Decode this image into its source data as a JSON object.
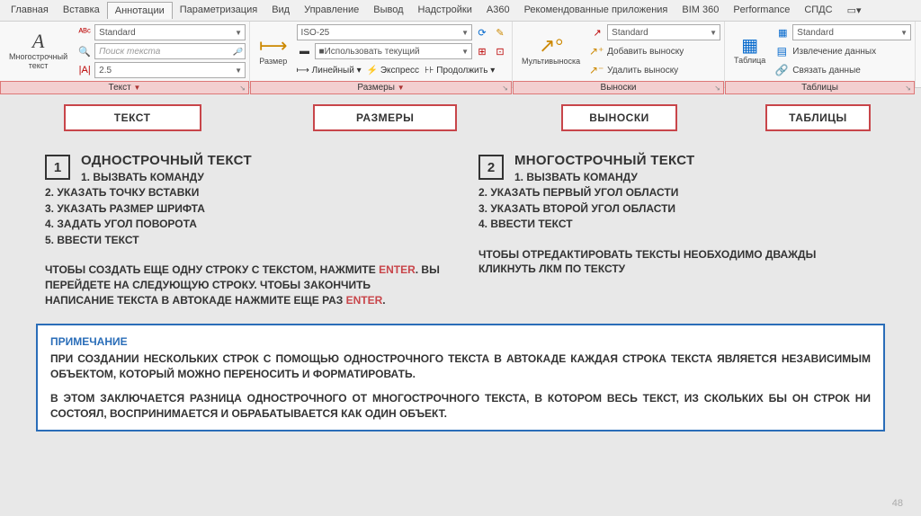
{
  "menu": [
    "Главная",
    "Вставка",
    "Аннотации",
    "Параметризация",
    "Вид",
    "Управление",
    "Вывод",
    "Надстройки",
    "A360",
    "Рекомендованные приложения",
    "BIM 360",
    "Performance",
    "СПДС",
    "▭▾"
  ],
  "menu_active_index": 2,
  "panels": {
    "text": {
      "tab": "Текст",
      "big_label": "Многострочный\nтекст",
      "combo1": "Standard",
      "search_ph": "Поиск текста",
      "combo2": "2.5"
    },
    "dim": {
      "tab": "Размеры",
      "big_label": "Размер",
      "combo1": "ISO-25",
      "use_current": "Использовать текущий",
      "btn1": "Линейный",
      "btn2": "Экспресс",
      "btn3": "Продолжить"
    },
    "leader": {
      "tab": "Выноски",
      "big_label": "Мультивыноска",
      "combo": "Standard",
      "add": "Добавить выноску",
      "del": "Удалить выноску"
    },
    "table": {
      "tab": "Таблицы",
      "big_label": "Таблица",
      "combo": "Standard",
      "extract": "Извлечение данных",
      "link": "Связать данные"
    }
  },
  "callouts": [
    "ТЕКСТ",
    "РАЗМЕРЫ",
    "ВЫНОСКИ",
    "ТАБЛИЦЫ"
  ],
  "col1": {
    "num": "1",
    "title": "ОДНОСТРОЧНЫЙ ТЕКСТ",
    "steps": [
      "1. ВЫЗВАТЬ КОМАНДУ",
      "2. УКАЗАТЬ ТОЧКУ ВСТАВКИ",
      "3. УКАЗАТЬ РАЗМЕР ШРИФТА",
      "4. ЗАДАТЬ УГОЛ ПОВОРОТА",
      "5. ВВЕСТИ ТЕКСТ"
    ],
    "note_a": "ЧТОБЫ СОЗДАТЬ ЕЩЕ ОДНУ СТРОКУ С ТЕКСТОМ, НАЖМИТЕ ",
    "enter": "ENTER",
    "note_b": ". ВЫ ПЕРЕЙДЕТЕ НА СЛЕДУЮЩУЮ СТРОКУ. ЧТОБЫ ЗАКОНЧИТЬ НАПИСАНИЕ ТЕКСТА В АВТОКАДЕ НАЖМИТЕ ЕЩЕ РАЗ ",
    "note_c": "."
  },
  "col2": {
    "num": "2",
    "title": "МНОГОСТРОЧНЫЙ ТЕКСТ",
    "steps": [
      "1. ВЫЗВАТЬ КОМАНДУ",
      "2. УКАЗАТЬ ПЕРВЫЙ УГОЛ ОБЛАСТИ",
      "3. УКАЗАТЬ ВТОРОЙ УГОЛ ОБЛАСТИ",
      "4. ВВЕСТИ ТЕКСТ"
    ],
    "note": "ЧТОБЫ ОТРЕДАКТИРОВАТЬ ТЕКСТЫ НЕОБХОДИМО ДВАЖДЫ КЛИКНУТЬ ЛКМ ПО ТЕКСТУ"
  },
  "footnote": {
    "hd": "ПРИМЕЧАНИЕ",
    "p1": "ПРИ СОЗДАНИИ НЕСКОЛЬКИХ СТРОК С ПОМОЩЬЮ ОДНОСТРОЧНОГО ТЕКСТА В АВТОКАДЕ КАЖДАЯ СТРОКА ТЕКСТА ЯВЛЯЕТСЯ НЕЗАВИСИМЫМ ОБЪЕКТОМ, КОТОРЫЙ МОЖНО ПЕРЕНОСИТЬ И ФОРМАТИРОВАТЬ.",
    "p2": "В ЭТОМ ЗАКЛЮЧАЕТСЯ РАЗНИЦА ОДНОСТРОЧНОГО ОТ МНОГОСТРОЧНОГО ТЕКСТА, В КОТОРОМ ВЕСЬ ТЕКСТ, ИЗ СКОЛЬКИХ БЫ ОН СТРОК НИ СОСТОЯЛ, ВОСПРИНИМАЕТСЯ И ОБРАБАТЫВАЕТСЯ КАК ОДИН ОБЪЕКТ."
  },
  "page": "48",
  "panel_widths": {
    "text": 278,
    "dim": 292,
    "leader": 236,
    "table": 212
  }
}
